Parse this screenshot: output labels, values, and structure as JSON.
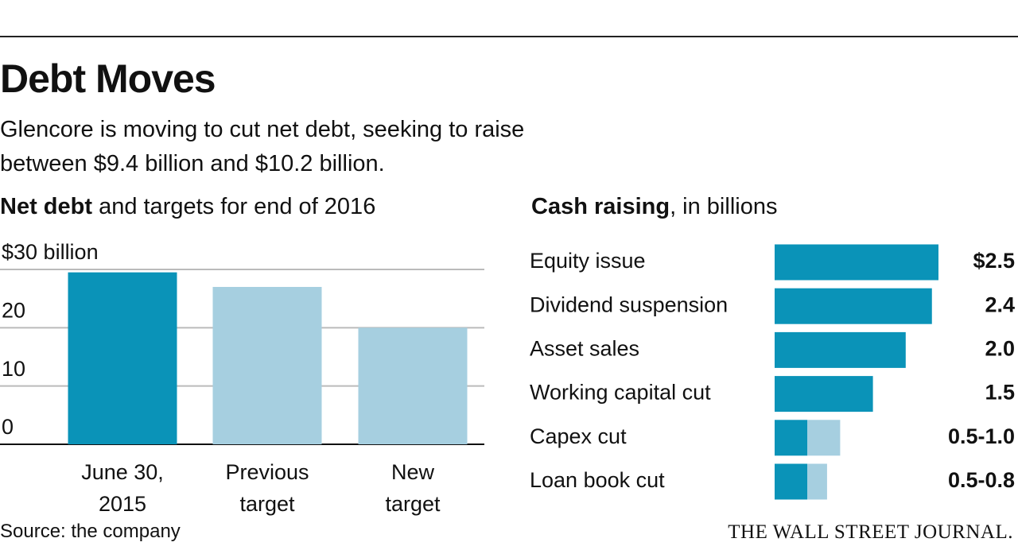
{
  "title": "Debt Moves",
  "subtitle": "Glencore is moving to cut net debt, seeking to raise between $9.4 billion and $10.2 billion.",
  "source": "Source: the company",
  "credit": "THE WALL STREET JOURNAL.",
  "chart_data": [
    {
      "type": "bar",
      "title": [
        "Net debt",
        "and targets for end of 2016"
      ],
      "categories": [
        "June 30, 2015",
        "Previous target",
        "New target"
      ],
      "values": [
        29.5,
        27,
        20
      ],
      "colors": [
        "#0a93b8",
        "#a6cfe0",
        "#a6cfe0"
      ],
      "ylim": [
        0,
        30
      ],
      "yticks": [
        0,
        10,
        20,
        {
          "value": 30,
          "label": "$30 billion"
        }
      ],
      "grid": true
    },
    {
      "type": "hbar-range",
      "title": [
        "Cash raising",
        ", in billions"
      ],
      "categories": [
        "Equity issue",
        "Dividend suspension",
        "Asset sales",
        "Working capital cut",
        "Capex cut",
        "Loan book cut"
      ],
      "values": [
        2.5,
        2.4,
        2.0,
        1.5,
        0.5,
        0.5
      ],
      "high": [
        null,
        null,
        null,
        null,
        1.0,
        0.8
      ],
      "value_labels": [
        "$2.5",
        "2.4",
        "2.0",
        "1.5",
        "0.5-1.0",
        "0.5-0.8"
      ],
      "color": "#0a93b8",
      "high_color": "#a6cfe0"
    }
  ]
}
